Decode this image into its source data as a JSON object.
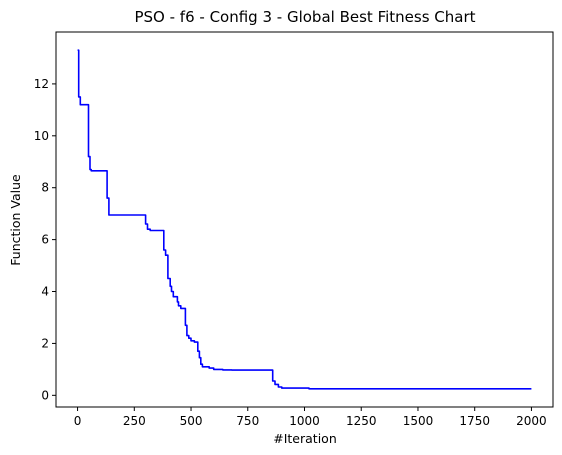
{
  "chart_data": {
    "type": "line",
    "title": "PSO - f6 - Config 3 - Global Best Fitness Chart",
    "xlabel": "#Iteration",
    "ylabel": "Function Value",
    "xlim": [
      -95,
      2095
    ],
    "ylim": [
      -0.45,
      14.0
    ],
    "xticks": [
      0,
      250,
      500,
      750,
      1000,
      1250,
      1500,
      1750,
      2000
    ],
    "yticks": [
      0,
      2,
      4,
      6,
      8,
      10,
      12
    ],
    "grid": false,
    "legend": "none",
    "series": [
      {
        "color": "#0000ff",
        "x": [
          0,
          5,
          5,
          12,
          12,
          20,
          20,
          48,
          48,
          55,
          55,
          60,
          60,
          130,
          130,
          138,
          138,
          140,
          140,
          300,
          300,
          308,
          308,
          320,
          320,
          380,
          380,
          388,
          388,
          398,
          398,
          408,
          408,
          414,
          414,
          422,
          422,
          440,
          440,
          445,
          445,
          455,
          455,
          475,
          475,
          482,
          482,
          490,
          490,
          500,
          500,
          515,
          515,
          530,
          530,
          537,
          537,
          543,
          543,
          550,
          550,
          580,
          580,
          600,
          600,
          640,
          640,
          680,
          680,
          860,
          860,
          870,
          870,
          885,
          885,
          900,
          900,
          1020,
          1020,
          2000
        ],
        "y": [
          13.3,
          13.3,
          11.5,
          11.5,
          11.2,
          11.2,
          11.2,
          11.2,
          9.2,
          9.2,
          8.7,
          8.7,
          8.65,
          8.65,
          7.6,
          7.6,
          6.95,
          6.95,
          6.95,
          6.95,
          6.6,
          6.6,
          6.4,
          6.4,
          6.35,
          6.35,
          5.6,
          5.6,
          5.4,
          5.4,
          4.5,
          4.5,
          4.2,
          4.2,
          4.0,
          4.0,
          3.8,
          3.8,
          3.6,
          3.6,
          3.45,
          3.45,
          3.35,
          3.35,
          2.7,
          2.7,
          2.3,
          2.3,
          2.2,
          2.2,
          2.1,
          2.1,
          2.05,
          2.05,
          1.7,
          1.7,
          1.45,
          1.45,
          1.2,
          1.2,
          1.1,
          1.1,
          1.05,
          1.05,
          1.0,
          1.0,
          0.98,
          0.98,
          0.97,
          0.97,
          0.55,
          0.55,
          0.42,
          0.42,
          0.32,
          0.32,
          0.28,
          0.28,
          0.25,
          0.25
        ]
      }
    ]
  }
}
